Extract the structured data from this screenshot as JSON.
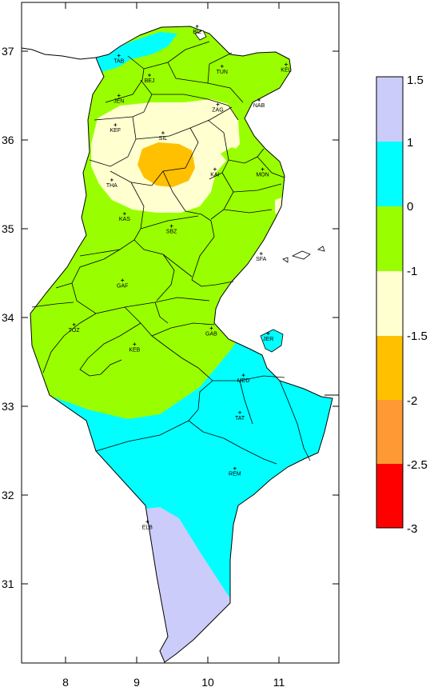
{
  "map": {
    "axes": {
      "x_ticks": [
        "8",
        "9",
        "10",
        "11"
      ],
      "y_ticks": [
        "37",
        "36",
        "35",
        "34",
        "33",
        "32",
        "31"
      ]
    },
    "stations": [
      {
        "code": "BIZ",
        "lon": 9.85,
        "lat": 37.28
      },
      {
        "code": "TAB",
        "lon": 8.75,
        "lat": 36.95
      },
      {
        "code": "BEJ",
        "lon": 9.18,
        "lat": 36.73
      },
      {
        "code": "TUN",
        "lon": 10.2,
        "lat": 36.83
      },
      {
        "code": "KEL",
        "lon": 11.1,
        "lat": 36.85
      },
      {
        "code": "JEN",
        "lon": 8.75,
        "lat": 36.5
      },
      {
        "code": "NAB",
        "lon": 10.72,
        "lat": 36.45
      },
      {
        "code": "ZAG",
        "lon": 10.14,
        "lat": 36.4
      },
      {
        "code": "KEF",
        "lon": 8.7,
        "lat": 36.17
      },
      {
        "code": "SIL",
        "lon": 9.37,
        "lat": 36.08
      },
      {
        "code": "KAI",
        "lon": 10.1,
        "lat": 35.67
      },
      {
        "code": "MON",
        "lon": 10.77,
        "lat": 35.67
      },
      {
        "code": "THA",
        "lon": 8.65,
        "lat": 35.55
      },
      {
        "code": "KAS",
        "lon": 8.83,
        "lat": 35.17
      },
      {
        "code": "SBZ",
        "lon": 9.49,
        "lat": 35.03
      },
      {
        "code": "SFA",
        "lon": 10.75,
        "lat": 34.72
      },
      {
        "code": "GAF",
        "lon": 8.8,
        "lat": 34.42
      },
      {
        "code": "GAB",
        "lon": 10.05,
        "lat": 33.88
      },
      {
        "code": "TOZ",
        "lon": 8.12,
        "lat": 33.92
      },
      {
        "code": "JER",
        "lon": 10.85,
        "lat": 33.82
      },
      {
        "code": "KEB",
        "lon": 8.97,
        "lat": 33.7
      },
      {
        "code": "MED",
        "lon": 10.5,
        "lat": 33.35
      },
      {
        "code": "TAT",
        "lon": 10.45,
        "lat": 32.93
      },
      {
        "code": "REM",
        "lon": 10.38,
        "lat": 32.3
      },
      {
        "code": "ELB",
        "lon": 9.15,
        "lat": 31.7
      }
    ]
  },
  "legend": {
    "labels": [
      "1.5",
      "1",
      "0",
      "-1",
      "-1.5",
      "-2",
      "-2.5",
      "-3"
    ],
    "classes": [
      {
        "from": 1,
        "to": 1.5,
        "color": "#ccccfa"
      },
      {
        "from": 0,
        "to": 1,
        "color": "#00ffff"
      },
      {
        "from": -1,
        "to": 0,
        "color": "#99ff00"
      },
      {
        "from": -1.5,
        "to": -1,
        "color": "#ffffd0"
      },
      {
        "from": -2,
        "to": -1.5,
        "color": "#ffc000"
      },
      {
        "from": -2.5,
        "to": -2,
        "color": "#ff9933"
      },
      {
        "from": -3,
        "to": -2.5,
        "color": "#ff0000"
      }
    ]
  },
  "colors": {
    "above_1": "#ccccfa",
    "class_0_1": "#00ffff",
    "class_m1_0": "#99ff00",
    "class_m15_m1": "#ffffd0",
    "class_m2_m15": "#ffc000",
    "border": "#000000",
    "frame": "#000000"
  }
}
